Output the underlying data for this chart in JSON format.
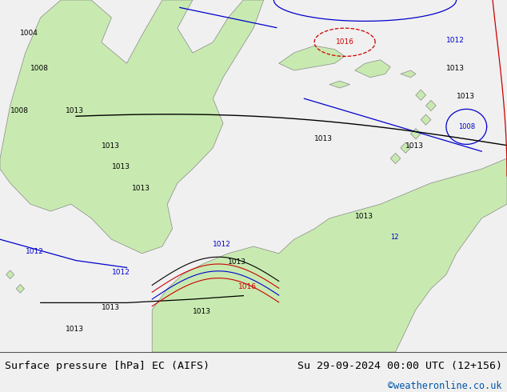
{
  "title_left": "Surface pressure [hPa] EC (AIFS)",
  "title_right": "Su 29-09-2024 00:00 UTC (12+156)",
  "watermark": "©weatheronline.co.uk",
  "bg_color": "#f0f0f0",
  "map_bg": "#d0e8f0",
  "land_color": "#c8eab0",
  "bottom_bar_color": "#ffffff",
  "text_color_black": "#000000",
  "text_color_blue": "#0000cc",
  "text_color_red": "#cc0000",
  "bottom_bar_height": 50,
  "label_fontsize": 10,
  "watermark_fontsize": 9,
  "watermark_color": "#0055aa"
}
